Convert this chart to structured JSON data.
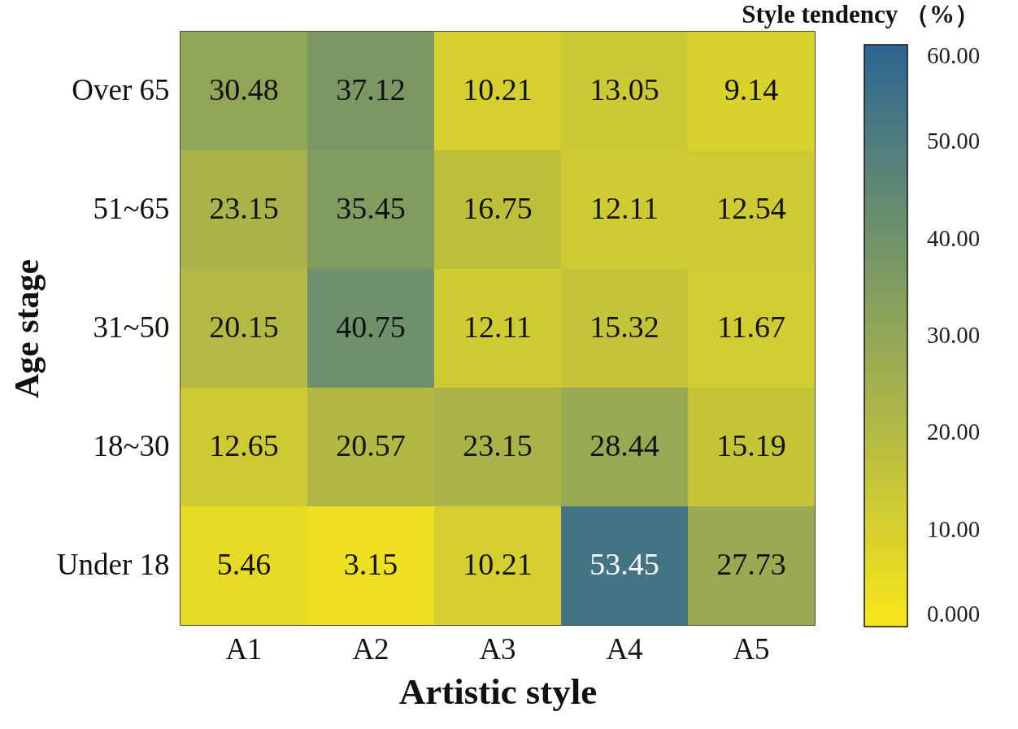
{
  "chart_data": {
    "type": "heatmap",
    "xlabel": "Artistic style",
    "ylabel": "Age stage",
    "clabel": "Style tendency （%）",
    "categories": [
      "A1",
      "A2",
      "A3",
      "A4",
      "A5"
    ],
    "y_categories": [
      "Over 65",
      "51~65",
      "31~50",
      "18~30",
      "Under 18"
    ],
    "cells": [
      [
        30.48,
        37.12,
        10.21,
        13.05,
        9.14
      ],
      [
        23.15,
        35.45,
        16.75,
        12.11,
        12.54
      ],
      [
        20.15,
        40.75,
        12.11,
        15.32,
        11.67
      ],
      [
        12.65,
        20.57,
        23.15,
        28.44,
        15.19
      ],
      [
        5.46,
        3.15,
        10.21,
        53.45,
        27.73
      ]
    ],
    "data_labels": true,
    "clim": [
      0,
      60
    ],
    "cticks": [
      {
        "value": 0,
        "label": "0.000"
      },
      {
        "value": 10,
        "label": "10.00"
      },
      {
        "value": 20,
        "label": "20.00"
      },
      {
        "value": 30,
        "label": "30.00"
      },
      {
        "value": 40,
        "label": "40.00"
      },
      {
        "value": 50,
        "label": "50.00"
      },
      {
        "value": 60,
        "label": "60.00"
      }
    ],
    "colors": [
      "#f9e71a",
      "#b3b943",
      "#71936a",
      "#2c6591"
    ]
  }
}
